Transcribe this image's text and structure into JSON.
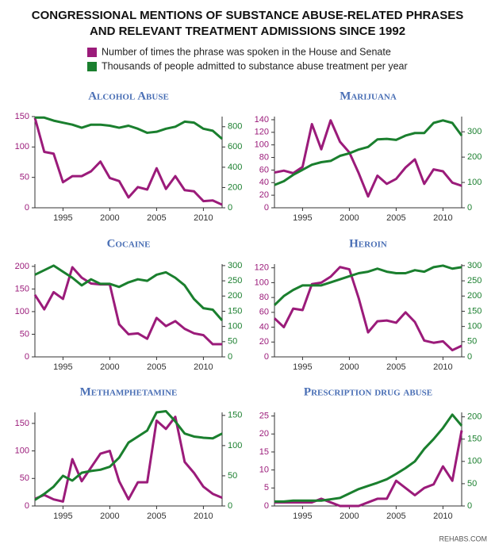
{
  "title": [
    "CONGRESSIONAL MENTIONS OF SUBSTANCE ABUSE-RELATED PHRASES",
    "AND RELEVANT TREATMENT ADMISSIONS SINCE 1992"
  ],
  "source": "REHABS.COM",
  "chart_data": [
    {
      "type": "line",
      "title": "Alcohol Abuse",
      "x": [
        1992,
        1993,
        1994,
        1995,
        1996,
        1997,
        1998,
        1999,
        2000,
        2001,
        2002,
        2003,
        2004,
        2005,
        2006,
        2007,
        2008,
        2009,
        2010,
        2011,
        2012
      ],
      "xlim": [
        1992,
        2012
      ],
      "xticks": [
        1995,
        2000,
        2005,
        2010
      ],
      "ylim": [
        0,
        150
      ],
      "yticks": [
        0,
        50,
        100,
        150
      ],
      "y2lim": [
        0,
        900
      ],
      "y2ticks": [
        0,
        200,
        400,
        600,
        800
      ],
      "series": [
        {
          "name": "Number of times the phrase was spoken in the House and Senate",
          "color": "#9b1b7a",
          "values": [
            148,
            92,
            89,
            42,
            52,
            52,
            60,
            76,
            49,
            44,
            17,
            34,
            30,
            65,
            31,
            52,
            29,
            27,
            11,
            12,
            5
          ]
        },
        {
          "name": "Thousands of people admitted to substance abuse treatment per year",
          "color": "#1a7f2e",
          "axis": "y2",
          "values": [
            890,
            890,
            860,
            840,
            820,
            790,
            820,
            820,
            810,
            790,
            810,
            780,
            740,
            750,
            780,
            800,
            850,
            840,
            780,
            760,
            680
          ]
        }
      ]
    },
    {
      "type": "line",
      "title": "Marijuana",
      "x": [
        1992,
        1993,
        1994,
        1995,
        1996,
        1997,
        1998,
        1999,
        2000,
        2001,
        2002,
        2003,
        2004,
        2005,
        2006,
        2007,
        2008,
        2009,
        2010,
        2011,
        2012
      ],
      "xlim": [
        1992,
        2012
      ],
      "xticks": [
        1995,
        2000,
        2005,
        2010
      ],
      "ylim": [
        0,
        145
      ],
      "yticks": [
        0,
        20,
        40,
        60,
        80,
        100,
        120,
        140
      ],
      "y2lim": [
        0,
        360
      ],
      "y2ticks": [
        0,
        100,
        200,
        300
      ],
      "series": [
        {
          "color": "#9b1b7a",
          "values": [
            56,
            59,
            55,
            65,
            133,
            93,
            139,
            105,
            88,
            55,
            18,
            51,
            38,
            46,
            64,
            77,
            38,
            61,
            58,
            40,
            35
          ]
        },
        {
          "color": "#1a7f2e",
          "axis": "y2",
          "values": [
            90,
            105,
            130,
            150,
            170,
            180,
            185,
            205,
            215,
            230,
            240,
            270,
            272,
            268,
            285,
            295,
            295,
            335,
            345,
            335,
            285
          ]
        }
      ]
    },
    {
      "type": "line",
      "title": "Cocaine",
      "x": [
        1992,
        1993,
        1994,
        1995,
        1996,
        1997,
        1998,
        1999,
        2000,
        2001,
        2002,
        2003,
        2004,
        2005,
        2006,
        2007,
        2008,
        2009,
        2010,
        2011,
        2012
      ],
      "xlim": [
        1992,
        2012
      ],
      "xticks": [
        1995,
        2000,
        2005,
        2010
      ],
      "ylim": [
        0,
        205
      ],
      "yticks": [
        0,
        50,
        100,
        150,
        200
      ],
      "y2lim": [
        0,
        305
      ],
      "y2ticks": [
        0,
        50,
        100,
        150,
        200,
        250,
        300
      ],
      "series": [
        {
          "color": "#9b1b7a",
          "values": [
            137,
            105,
            143,
            128,
            198,
            175,
            162,
            160,
            160,
            72,
            50,
            52,
            40,
            86,
            68,
            79,
            62,
            52,
            48,
            28,
            28
          ]
        },
        {
          "color": "#1a7f2e",
          "axis": "y2",
          "values": [
            270,
            285,
            300,
            280,
            260,
            235,
            255,
            240,
            240,
            230,
            245,
            255,
            250,
            270,
            278,
            260,
            235,
            190,
            160,
            155,
            120
          ]
        }
      ]
    },
    {
      "type": "line",
      "title": "Heroin",
      "x": [
        1992,
        1993,
        1994,
        1995,
        1996,
        1997,
        1998,
        1999,
        2000,
        2001,
        2002,
        2003,
        2004,
        2005,
        2006,
        2007,
        2008,
        2009,
        2010,
        2011,
        2012
      ],
      "xlim": [
        1992,
        2012
      ],
      "xticks": [
        1995,
        2000,
        2005,
        2010
      ],
      "ylim": [
        0,
        125
      ],
      "yticks": [
        0,
        20,
        40,
        60,
        80,
        100,
        120
      ],
      "y2lim": [
        0,
        305
      ],
      "y2ticks": [
        0,
        50,
        100,
        150,
        200,
        250,
        300
      ],
      "series": [
        {
          "color": "#9b1b7a",
          "values": [
            52,
            40,
            65,
            63,
            98,
            100,
            108,
            121,
            118,
            79,
            33,
            48,
            49,
            46,
            60,
            47,
            22,
            19,
            21,
            9,
            15
          ]
        },
        {
          "color": "#1a7f2e",
          "axis": "y2",
          "values": [
            170,
            200,
            220,
            235,
            235,
            235,
            245,
            255,
            265,
            275,
            280,
            290,
            280,
            275,
            275,
            285,
            280,
            295,
            300,
            290,
            295
          ]
        }
      ]
    },
    {
      "type": "line",
      "title": "Methamphetamine",
      "x": [
        1992,
        1993,
        1994,
        1995,
        1996,
        1997,
        1998,
        1999,
        2000,
        2001,
        2002,
        2003,
        2004,
        2005,
        2006,
        2007,
        2008,
        2009,
        2010,
        2011,
        2012
      ],
      "xlim": [
        1992,
        2012
      ],
      "xticks": [
        1995,
        2000,
        2005,
        2010
      ],
      "ylim": [
        0,
        170
      ],
      "yticks": [
        0,
        50,
        100,
        150
      ],
      "y2lim": [
        0,
        155
      ],
      "y2ticks": [
        0,
        50,
        100,
        150
      ],
      "series": [
        {
          "color": "#9b1b7a",
          "values": [
            13,
            20,
            12,
            8,
            85,
            45,
            70,
            95,
            100,
            45,
            12,
            43,
            43,
            155,
            140,
            162,
            80,
            60,
            35,
            22,
            15
          ]
        },
        {
          "color": "#1a7f2e",
          "axis": "y2",
          "values": [
            10,
            20,
            32,
            50,
            42,
            55,
            58,
            60,
            65,
            80,
            105,
            115,
            125,
            155,
            157,
            140,
            120,
            115,
            113,
            112,
            120
          ]
        }
      ]
    },
    {
      "type": "line",
      "title": "Prescription drug abuse",
      "x": [
        1992,
        1993,
        1994,
        1995,
        1996,
        1997,
        1998,
        1999,
        2000,
        2001,
        2002,
        2003,
        2004,
        2005,
        2006,
        2007,
        2008,
        2009,
        2010,
        2011,
        2012
      ],
      "xlim": [
        1992,
        2012
      ],
      "xticks": [
        1995,
        2000,
        2005,
        2010
      ],
      "ylim": [
        0,
        26
      ],
      "yticks": [
        0,
        5,
        10,
        15,
        20,
        25
      ],
      "y2lim": [
        0,
        210
      ],
      "y2ticks": [
        0,
        50,
        100,
        150,
        200
      ],
      "series": [
        {
          "color": "#9b1b7a",
          "values": [
            1,
            1,
            1,
            1,
            1,
            2,
            1,
            0,
            0,
            0,
            1,
            2,
            2,
            7,
            5,
            3,
            5,
            6,
            11,
            7,
            21
          ]
        },
        {
          "color": "#1a7f2e",
          "axis": "y2",
          "values": [
            10,
            10,
            12,
            12,
            12,
            12,
            15,
            18,
            28,
            38,
            45,
            52,
            60,
            72,
            85,
            100,
            128,
            150,
            175,
            205,
            180
          ]
        }
      ]
    }
  ]
}
